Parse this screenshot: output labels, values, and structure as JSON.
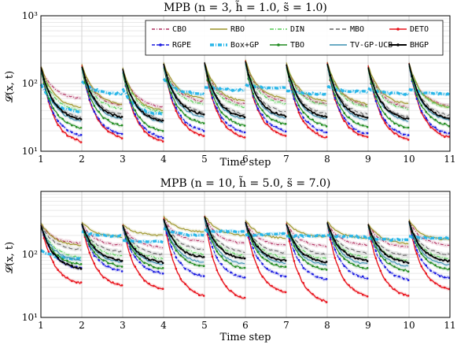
{
  "chart_data": [
    {
      "type": "line",
      "title": "MPB (n = 3, h̃ = 1.0, s̃ = 1.0)",
      "xlabel": "Time step",
      "ylabel": "𝓛(x, t)",
      "xlim": [
        1,
        11
      ],
      "ylim": [
        10,
        1000
      ],
      "yscale": "log",
      "x_ticks": [
        "1",
        "2",
        "3",
        "4",
        "5",
        "6",
        "7",
        "8",
        "9",
        "10",
        "11"
      ],
      "y_ticks": [
        "10¹",
        "10²",
        "10³"
      ],
      "grid": true,
      "legend": "top-center",
      "x": [
        1,
        2,
        3,
        4,
        5,
        6,
        7,
        8,
        9,
        10
      ],
      "series": [
        {
          "name": "CBO",
          "color": "#b03060",
          "start": [
            175,
            180,
            160,
            190,
            200,
            210,
            190,
            200,
            180,
            195
          ],
          "end": [
            60,
            48,
            45,
            55,
            50,
            55,
            50,
            48,
            45,
            47
          ]
        },
        {
          "name": "RBO",
          "color": "#9c9428",
          "start": [
            185,
            190,
            170,
            200,
            205,
            220,
            200,
            205,
            185,
            200
          ],
          "end": [
            45,
            50,
            40,
            60,
            55,
            60,
            55,
            50,
            50,
            45
          ]
        },
        {
          "name": "DIN",
          "color": "#55cc55",
          "start": [
            170,
            175,
            155,
            185,
            195,
            200,
            185,
            195,
            175,
            190
          ],
          "end": [
            40,
            42,
            38,
            50,
            45,
            50,
            48,
            45,
            42,
            44
          ]
        },
        {
          "name": "MBO",
          "color": "#666666",
          "start": [
            172,
            178,
            158,
            188,
            198,
            205,
            188,
            198,
            178,
            192
          ],
          "end": [
            32,
            35,
            30,
            38,
            35,
            38,
            36,
            35,
            32,
            34
          ]
        },
        {
          "name": "DETO",
          "color": "#e8131c",
          "start": [
            180,
            185,
            165,
            195,
            200,
            215,
            195,
            200,
            180,
            198
          ],
          "end": [
            14,
            16,
            14,
            17,
            16,
            17,
            16,
            16,
            15,
            16
          ]
        },
        {
          "name": "RGPE",
          "color": "#1a1ae0",
          "start": [
            165,
            170,
            150,
            180,
            190,
            195,
            180,
            190,
            170,
            185
          ],
          "end": [
            17,
            18,
            16,
            20,
            19,
            20,
            19,
            18,
            17,
            18
          ]
        },
        {
          "name": "Box+GP",
          "color": "#29b6e8",
          "start": [
            100,
            110,
            85,
            120,
            90,
            95,
            80,
            90,
            85,
            82
          ],
          "end": [
            38,
            70,
            35,
            70,
            80,
            85,
            70,
            75,
            70,
            70
          ]
        },
        {
          "name": "TBO",
          "color": "#1f8a1f",
          "start": [
            160,
            165,
            145,
            175,
            185,
            190,
            175,
            185,
            165,
            180
          ],
          "end": [
            22,
            24,
            20,
            26,
            24,
            25,
            24,
            23,
            22,
            24
          ]
        },
        {
          "name": "TV-GP-UCB",
          "color": "#3a8fb0",
          "start": [
            168,
            172,
            152,
            182,
            192,
            198,
            182,
            192,
            172,
            188
          ],
          "end": [
            28,
            30,
            27,
            32,
            30,
            31,
            30,
            29,
            28,
            29
          ]
        },
        {
          "name": "BHGP",
          "color": "#000000",
          "start": [
            178,
            182,
            162,
            192,
            200,
            208,
            192,
            200,
            178,
            195
          ],
          "end": [
            30,
            32,
            28,
            35,
            32,
            33,
            32,
            31,
            30,
            31
          ]
        }
      ]
    },
    {
      "type": "line",
      "title": "MPB (n = 10, h̃ = 5.0, s̃ = 7.0)",
      "xlabel": "Time step",
      "ylabel": "𝓛(x, t)",
      "xlim": [
        1,
        11
      ],
      "ylim": [
        10,
        1000
      ],
      "yscale": "log",
      "x_ticks": [
        "1",
        "2",
        "3",
        "4",
        "5",
        "6",
        "7",
        "8",
        "9",
        "10",
        "11"
      ],
      "y_ticks": [
        "10¹",
        "10²"
      ],
      "grid": true,
      "x": [
        1,
        2,
        3,
        4,
        5,
        6,
        7,
        8,
        9,
        10
      ],
      "series": [
        {
          "name": "CBO",
          "color": "#b03060",
          "start": [
            300,
            310,
            290,
            380,
            400,
            330,
            310,
            320,
            300,
            330
          ],
          "end": [
            150,
            140,
            130,
            160,
            150,
            140,
            135,
            140,
            130,
            140
          ]
        },
        {
          "name": "RBO",
          "color": "#9c9428",
          "start": [
            320,
            330,
            300,
            400,
            420,
            350,
            330,
            340,
            310,
            350
          ],
          "end": [
            140,
            190,
            200,
            230,
            200,
            180,
            190,
            180,
            150,
            170
          ]
        },
        {
          "name": "DIN",
          "color": "#55cc55",
          "start": [
            290,
            300,
            280,
            360,
            380,
            320,
            300,
            310,
            290,
            320
          ],
          "end": [
            90,
            95,
            85,
            100,
            95,
            90,
            85,
            90,
            80,
            85
          ]
        },
        {
          "name": "MBO",
          "color": "#666666",
          "start": [
            295,
            305,
            285,
            370,
            390,
            325,
            305,
            315,
            295,
            325
          ],
          "end": [
            120,
            110,
            100,
            120,
            110,
            105,
            100,
            105,
            95,
            100
          ]
        },
        {
          "name": "DETO",
          "color": "#e8131c",
          "start": [
            300,
            310,
            290,
            380,
            400,
            330,
            310,
            320,
            300,
            330
          ],
          "end": [
            35,
            32,
            28,
            22,
            20,
            25,
            18,
            22,
            22,
            28
          ]
        },
        {
          "name": "RGPE",
          "color": "#1a1ae0",
          "start": [
            280,
            290,
            270,
            350,
            370,
            310,
            290,
            300,
            280,
            310
          ],
          "end": [
            60,
            55,
            50,
            45,
            42,
            45,
            40,
            42,
            40,
            42
          ]
        },
        {
          "name": "Box+GP",
          "color": "#29b6e8",
          "start": [
            120,
            230,
            170,
            260,
            240,
            200,
            190,
            200,
            180,
            190
          ],
          "end": [
            85,
            195,
            160,
            200,
            230,
            210,
            200,
            190,
            170,
            180
          ]
        },
        {
          "name": "TBO",
          "color": "#1f8a1f",
          "start": [
            285,
            295,
            275,
            355,
            375,
            315,
            295,
            305,
            285,
            315
          ],
          "end": [
            70,
            65,
            60,
            65,
            60,
            62,
            58,
            60,
            55,
            58
          ]
        },
        {
          "name": "TV-GP-UCB",
          "color": "#3a8fb0",
          "start": [
            288,
            298,
            278,
            358,
            378,
            318,
            298,
            308,
            288,
            318
          ],
          "end": [
            80,
            75,
            70,
            75,
            70,
            72,
            68,
            70,
            65,
            68
          ]
        },
        {
          "name": "BHGP",
          "color": "#000000",
          "start": [
            298,
            308,
            288,
            375,
            395,
            328,
            308,
            318,
            298,
            328
          ],
          "end": [
            60,
            80,
            75,
            90,
            85,
            80,
            75,
            80,
            75,
            78
          ]
        }
      ]
    }
  ]
}
